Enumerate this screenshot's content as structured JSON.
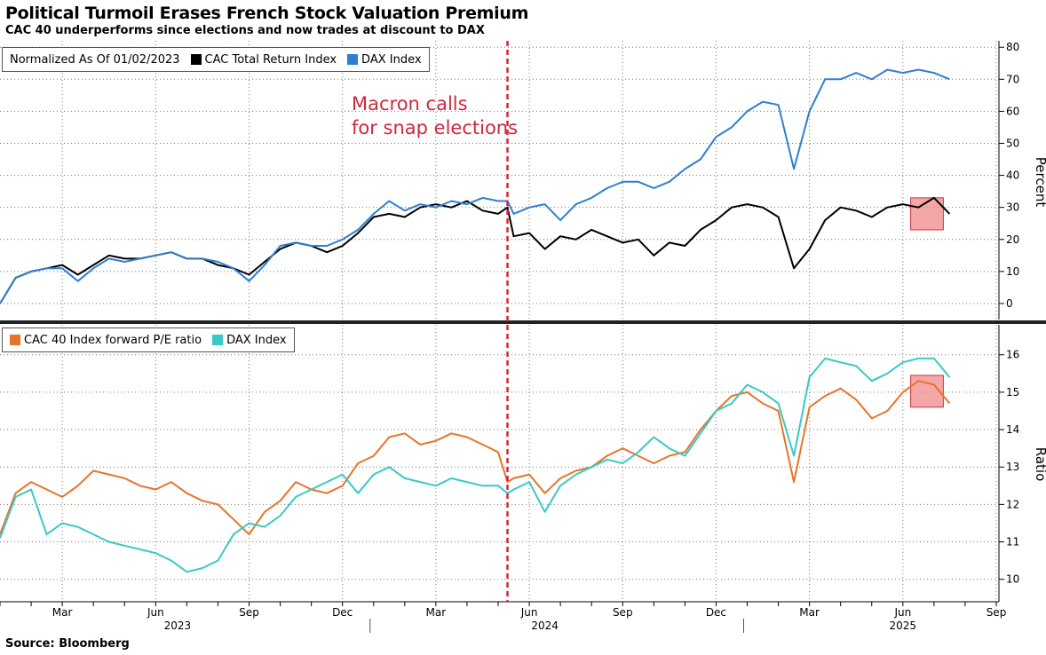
{
  "title": "Political Turmoil Erases French Stock Valuation Premium",
  "subtitle": "CAC 40 underperforms since elections and now trades at discount to DAX",
  "source": "Source: Bloomberg",
  "annotation": "Macron calls\nfor snap elections",
  "colors": {
    "cac_tr": "#000000",
    "dax_top": "#2f7fd0",
    "cac_pe": "#e8742a",
    "dax_pe": "#3ac8c8",
    "event": "#d0283c",
    "highlight_fill": "#f08a8a",
    "highlight_stroke": "#d03040"
  },
  "chart_data": [
    {
      "type": "line",
      "legend": {
        "prefix": "Normalized As Of 01/02/2023",
        "entries": [
          "CAC Total Return Index",
          "DAX Index"
        ]
      },
      "ylabel": "Percent",
      "ylim": [
        -5,
        82
      ],
      "yticks": [
        0,
        10,
        20,
        30,
        40,
        50,
        60,
        70,
        80
      ],
      "x_axis": "months since 2023-01-02",
      "xlim": [
        0,
        32
      ],
      "event_x": 16.3,
      "highlight": {
        "x": [
          29.25,
          30.3
        ],
        "y": [
          23,
          33
        ]
      },
      "series": [
        {
          "name": "CAC Total Return Index",
          "x": [
            0,
            0.5,
            1,
            1.5,
            2,
            2.5,
            3,
            3.5,
            4,
            4.5,
            5,
            5.5,
            6,
            6.5,
            7,
            7.5,
            8,
            8.5,
            9,
            9.5,
            10,
            10.5,
            11,
            11.5,
            12,
            12.5,
            13,
            13.5,
            14,
            14.5,
            15,
            15.5,
            16,
            16.3,
            16.5,
            17,
            17.5,
            18,
            18.5,
            19,
            19.5,
            20,
            20.5,
            21,
            21.5,
            22,
            22.5,
            23,
            23.5,
            24,
            24.5,
            25,
            25.5,
            26,
            26.5,
            27,
            27.5,
            28,
            28.5,
            29,
            29.5,
            30,
            30.5
          ],
          "values": [
            0,
            8,
            10,
            11,
            12,
            9,
            12,
            15,
            14,
            14,
            15,
            16,
            14,
            14,
            12,
            11,
            9,
            13,
            17,
            19,
            18,
            16,
            18,
            22,
            27,
            28,
            27,
            30,
            31,
            30,
            32,
            29,
            28,
            30,
            21,
            22,
            17,
            21,
            20,
            23,
            21,
            19,
            20,
            15,
            19,
            18,
            23,
            26,
            30,
            31,
            30,
            27,
            11,
            17,
            26,
            30,
            29,
            27,
            30,
            31,
            30,
            33,
            28
          ]
        },
        {
          "name": "DAX Index",
          "x": [
            0,
            0.5,
            1,
            1.5,
            2,
            2.5,
            3,
            3.5,
            4,
            4.5,
            5,
            5.5,
            6,
            6.5,
            7,
            7.5,
            8,
            8.5,
            9,
            9.5,
            10,
            10.5,
            11,
            11.5,
            12,
            12.5,
            13,
            13.5,
            14,
            14.5,
            15,
            15.5,
            16,
            16.3,
            16.5,
            17,
            17.5,
            18,
            18.5,
            19,
            19.5,
            20,
            20.5,
            21,
            21.5,
            22,
            22.5,
            23,
            23.5,
            24,
            24.5,
            25,
            25.5,
            26,
            26.5,
            27,
            27.5,
            28,
            28.5,
            29,
            29.5,
            30,
            30.5
          ],
          "values": [
            0,
            8,
            10,
            11,
            11,
            7,
            11,
            14,
            13,
            14,
            15,
            16,
            14,
            14,
            13,
            11,
            7,
            12,
            18,
            19,
            18,
            18,
            20,
            23,
            28,
            32,
            29,
            31,
            30,
            32,
            31,
            33,
            32,
            32,
            28,
            30,
            31,
            26,
            31,
            33,
            36,
            38,
            38,
            36,
            38,
            42,
            45,
            52,
            55,
            60,
            63,
            62,
            42,
            60,
            70,
            70,
            72,
            70,
            73,
            72,
            73,
            72,
            70
          ]
        }
      ],
      "xticks": [
        "Mar",
        "Jun",
        "Sep",
        "Dec",
        "Mar",
        "Jun",
        "Sep",
        "Dec",
        "Mar",
        "Jun",
        "Sep"
      ],
      "xyears": [
        "2023",
        "2024",
        "2025"
      ]
    },
    {
      "type": "line",
      "legend": {
        "entries": [
          "CAC 40 Index forward P/E ratio",
          "DAX Index"
        ]
      },
      "ylabel": "Ratio",
      "ylim": [
        9.4,
        16.8
      ],
      "yticks": [
        10,
        11,
        12,
        13,
        14,
        15,
        16
      ],
      "x_axis": "months since 2023-01-02",
      "xlim": [
        0,
        32
      ],
      "event_x": 16.3,
      "highlight": {
        "x": [
          29.25,
          30.3
        ],
        "y": [
          14.6,
          15.45
        ]
      },
      "series": [
        {
          "name": "CAC 40 Index forward P/E ratio",
          "x": [
            0,
            0.5,
            1,
            1.5,
            2,
            2.5,
            3,
            3.5,
            4,
            4.5,
            5,
            5.5,
            6,
            6.5,
            7,
            7.5,
            8,
            8.5,
            9,
            9.5,
            10,
            10.5,
            11,
            11.5,
            12,
            12.5,
            13,
            13.5,
            14,
            14.5,
            15,
            15.5,
            16,
            16.3,
            16.5,
            17,
            17.5,
            18,
            18.5,
            19,
            19.5,
            20,
            20.5,
            21,
            21.5,
            22,
            22.5,
            23,
            23.5,
            24,
            24.5,
            25,
            25.5,
            26,
            26.5,
            27,
            27.5,
            28,
            28.5,
            29,
            29.5,
            30,
            30.5
          ],
          "values": [
            11.2,
            12.3,
            12.6,
            12.4,
            12.2,
            12.5,
            12.9,
            12.8,
            12.7,
            12.5,
            12.4,
            12.6,
            12.3,
            12.1,
            12.0,
            11.6,
            11.2,
            11.8,
            12.1,
            12.6,
            12.4,
            12.3,
            12.5,
            13.1,
            13.3,
            13.8,
            13.9,
            13.6,
            13.7,
            13.9,
            13.8,
            13.6,
            13.4,
            12.6,
            12.7,
            12.8,
            12.3,
            12.7,
            12.9,
            13.0,
            13.3,
            13.5,
            13.3,
            13.1,
            13.3,
            13.4,
            14.0,
            14.5,
            14.9,
            15.0,
            14.7,
            14.5,
            12.6,
            14.6,
            14.9,
            15.1,
            14.8,
            14.3,
            14.5,
            15.0,
            15.3,
            15.2,
            14.7
          ]
        },
        {
          "name": "DAX Index",
          "x": [
            0,
            0.5,
            1,
            1.5,
            2,
            2.5,
            3,
            3.5,
            4,
            4.5,
            5,
            5.5,
            6,
            6.5,
            7,
            7.5,
            8,
            8.5,
            9,
            9.5,
            10,
            10.5,
            11,
            11.5,
            12,
            12.5,
            13,
            13.5,
            14,
            14.5,
            15,
            15.5,
            16,
            16.3,
            16.5,
            17,
            17.5,
            18,
            18.5,
            19,
            19.5,
            20,
            20.5,
            21,
            21.5,
            22,
            22.5,
            23,
            23.5,
            24,
            24.5,
            25,
            25.5,
            26,
            26.5,
            27,
            27.5,
            28,
            28.5,
            29,
            29.5,
            30,
            30.5
          ],
          "values": [
            11.1,
            12.2,
            12.4,
            11.2,
            11.5,
            11.4,
            11.2,
            11.0,
            10.9,
            10.8,
            10.7,
            10.5,
            10.2,
            10.3,
            10.5,
            11.2,
            11.5,
            11.4,
            11.7,
            12.2,
            12.4,
            12.6,
            12.8,
            12.3,
            12.8,
            13.0,
            12.7,
            12.6,
            12.5,
            12.7,
            12.6,
            12.5,
            12.5,
            12.3,
            12.4,
            12.6,
            11.8,
            12.5,
            12.8,
            13.0,
            13.2,
            13.1,
            13.4,
            13.8,
            13.5,
            13.3,
            13.9,
            14.5,
            14.7,
            15.2,
            15.0,
            14.7,
            13.3,
            15.4,
            15.9,
            15.8,
            15.7,
            15.3,
            15.5,
            15.8,
            15.9,
            15.9,
            15.4
          ]
        }
      ]
    }
  ]
}
